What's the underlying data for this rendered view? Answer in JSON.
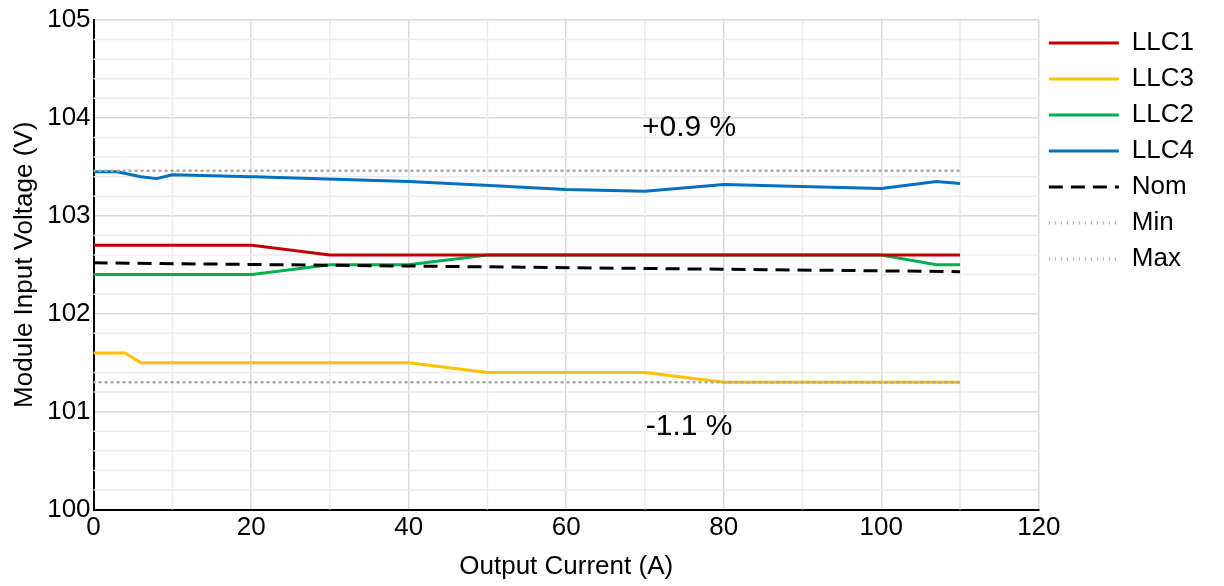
{
  "chart_data": {
    "type": "line",
    "xlabel": "Output Current (A)",
    "ylabel": "Module Input Voltage (V)",
    "xlim": [
      0,
      120
    ],
    "xticks": [
      0,
      20,
      40,
      60,
      80,
      100,
      120
    ],
    "ylim": [
      100,
      105
    ],
    "yticks": [
      100,
      101,
      102,
      103,
      104,
      105
    ],
    "grid": true,
    "legend": "right",
    "marker": "none",
    "line_style": "solid",
    "series": [
      {
        "name": "LLC1",
        "color": "#c00000",
        "x": [
          0,
          20,
          30,
          100,
          110
        ],
        "values": [
          102.7,
          102.7,
          102.6,
          102.6,
          102.6
        ]
      },
      {
        "name": "LLC3",
        "color": "#ffc000",
        "x": [
          0,
          4,
          6,
          40,
          50,
          70,
          80,
          110
        ],
        "values": [
          101.6,
          101.6,
          101.5,
          101.5,
          101.4,
          101.4,
          101.3,
          101.3
        ]
      },
      {
        "name": "LLC2",
        "color": "#00b050",
        "x": [
          0,
          20,
          30,
          40,
          50,
          100,
          107,
          110
        ],
        "values": [
          102.4,
          102.4,
          102.5,
          102.5,
          102.6,
          102.6,
          102.5,
          102.5
        ]
      },
      {
        "name": "LLC4",
        "color": "#0070c0",
        "x": [
          0,
          3,
          6,
          8,
          10,
          20,
          40,
          60,
          70,
          80,
          100,
          107,
          110
        ],
        "values": [
          103.45,
          103.45,
          103.4,
          103.38,
          103.42,
          103.4,
          103.35,
          103.27,
          103.25,
          103.32,
          103.28,
          103.35,
          103.33
        ]
      },
      {
        "name": "Nom",
        "color": "#000000",
        "line_style": "dashed",
        "x": [
          0,
          110
        ],
        "values": [
          102.52,
          102.43
        ]
      },
      {
        "name": "Min",
        "color": "#a6a6a6",
        "line_style": "dotted",
        "x": [
          0,
          110
        ],
        "values": [
          101.3,
          101.3
        ]
      },
      {
        "name": "Max",
        "color": "#a6a6a6",
        "line_style": "dotted",
        "x": [
          0,
          110
        ],
        "values": [
          103.46,
          103.46
        ]
      }
    ],
    "annotations": [
      "+0.9 %",
      "-1.1 %"
    ]
  }
}
